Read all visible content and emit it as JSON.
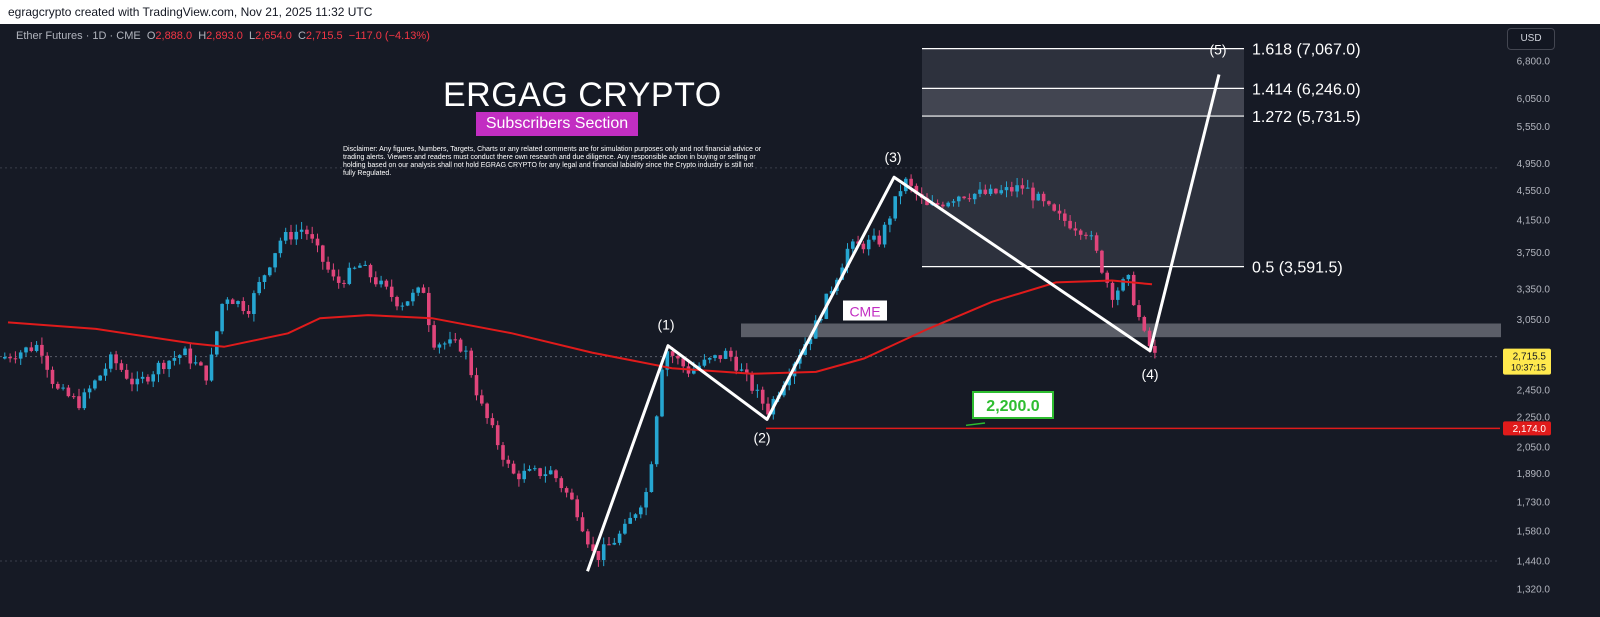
{
  "header": {
    "attribution": "egragcrypto created with TradingView.com, Nov 21, 2025 11:32 UTC"
  },
  "instrument": {
    "name": "Ether Futures · 1D · CME",
    "open_label": "O",
    "open": "2,888.0",
    "high_label": "H",
    "high": "2,893.0",
    "low_label": "L",
    "low": "2,654.0",
    "close_label": "C",
    "close": "2,715.5",
    "change": "−117.0 (−4.13%)"
  },
  "currency_button": "USD",
  "branding": {
    "title": "ERGAG CRYPTO",
    "subtitle": "Subscribers Section",
    "disclaimer": "Disclaimer: Any figures, Numbers, Targets, Charts or any related comments are for simulation purposes only and not financial advice or trading alerts. Viewers and readers must conduct there own research and due diligence. Any responsible action in buying or selling or holding based on our analysis shall not hold EGRAG CRYPTO for any legal and financial labiality since the Crypto industry is still not fully Regulated."
  },
  "colors": {
    "background": "#161a25",
    "bull": "#26a6d1",
    "bear": "#e0457b",
    "ma_line": "#e01b1b",
    "support_line": "#e01b1b",
    "wave_line": "#ffffff",
    "brand_magenta": "#c22ec2",
    "price_tag_bg": "#ffe94d",
    "support_tag_bg": "#e01b1b",
    "target_label_border": "#2ebd30"
  },
  "chart_data": {
    "type": "candlestick",
    "title": "",
    "xlabel": "",
    "ylabel": "",
    "scale": "log",
    "ylim": [
      1280,
      7600
    ],
    "y_ticks": [
      "6,800.0",
      "6,050.0",
      "5,550.0",
      "4,950.0",
      "4,550.0",
      "4,150.0",
      "3,750.0",
      "3,350.0",
      "3,050.0",
      "2,450.0",
      "2,250.0",
      "2,050.0",
      "1,890.0",
      "1,730.0",
      "1,580.0",
      "1,440.0",
      "1,320.0"
    ],
    "current_price": {
      "value": 2715.5,
      "label": "2,715.5",
      "countdown": "10:37:15"
    },
    "support": {
      "value": 2174.0,
      "label": "2,174.0"
    },
    "target": {
      "value": 2200.0,
      "label": "2,200.0"
    },
    "fib_levels": [
      {
        "label": "1.618 (7,067.0)",
        "value": 7067.0
      },
      {
        "label": "1.414 (6,246.0)",
        "value": 6246.0
      },
      {
        "label": "1.272 (5,731.5)",
        "value": 5731.5
      },
      {
        "label": "0.5 (3,591.5)",
        "value": 3591.5
      }
    ],
    "cme_zone": {
      "label": "CME",
      "low": 2885,
      "high": 3010
    },
    "wave_labels": [
      "(1)",
      "(2)",
      "(3)",
      "(4)",
      "(5)"
    ],
    "wave_points": [
      {
        "t": 0.3672,
        "value": 1395
      },
      {
        "t": 0.4175,
        "value": 2810
      },
      {
        "t": 0.4794,
        "value": 2235
      },
      {
        "t": 0.5588,
        "value": 4740
      },
      {
        "t": 0.7188,
        "value": 2765
      },
      {
        "t": 0.7619,
        "value": 6520
      }
    ],
    "price_path": [
      [
        0.0,
        2700
      ],
      [
        0.025,
        2820
      ],
      [
        0.035,
        2450
      ],
      [
        0.05,
        2350
      ],
      [
        0.07,
        2700
      ],
      [
        0.085,
        2480
      ],
      [
        0.1,
        2650
      ],
      [
        0.115,
        2750
      ],
      [
        0.13,
        2550
      ],
      [
        0.14,
        3300
      ],
      [
        0.155,
        3150
      ],
      [
        0.175,
        3900
      ],
      [
        0.19,
        4050
      ],
      [
        0.21,
        3400
      ],
      [
        0.225,
        3600
      ],
      [
        0.25,
        3200
      ],
      [
        0.265,
        3350
      ],
      [
        0.27,
        2850
      ],
      [
        0.29,
        2800
      ],
      [
        0.3,
        2350
      ],
      [
        0.32,
        1880
      ],
      [
        0.345,
        1900
      ],
      [
        0.36,
        1700
      ],
      [
        0.372,
        1450
      ],
      [
        0.39,
        1580
      ],
      [
        0.405,
        1800
      ],
      [
        0.415,
        2800
      ],
      [
        0.43,
        2600
      ],
      [
        0.455,
        2750
      ],
      [
        0.48,
        2300
      ],
      [
        0.495,
        2650
      ],
      [
        0.51,
        3000
      ],
      [
        0.53,
        3800
      ],
      [
        0.55,
        3900
      ],
      [
        0.565,
        4700
      ],
      [
        0.58,
        4300
      ],
      [
        0.6,
        4500
      ],
      [
        0.62,
        4500
      ],
      [
        0.64,
        4600
      ],
      [
        0.66,
        4200
      ],
      [
        0.68,
        4000
      ],
      [
        0.695,
        3300
      ],
      [
        0.705,
        3450
      ],
      [
        0.715,
        2900
      ],
      [
        0.722,
        2715
      ]
    ],
    "moving_average": [
      [
        0.005,
        3020
      ],
      [
        0.06,
        2960
      ],
      [
        0.12,
        2830
      ],
      [
        0.14,
        2800
      ],
      [
        0.18,
        2920
      ],
      [
        0.2,
        3060
      ],
      [
        0.23,
        3090
      ],
      [
        0.27,
        3060
      ],
      [
        0.32,
        2920
      ],
      [
        0.37,
        2750
      ],
      [
        0.42,
        2620
      ],
      [
        0.47,
        2575
      ],
      [
        0.51,
        2590
      ],
      [
        0.54,
        2700
      ],
      [
        0.58,
        2960
      ],
      [
        0.62,
        3220
      ],
      [
        0.66,
        3420
      ],
      [
        0.695,
        3440
      ],
      [
        0.72,
        3400
      ]
    ]
  }
}
